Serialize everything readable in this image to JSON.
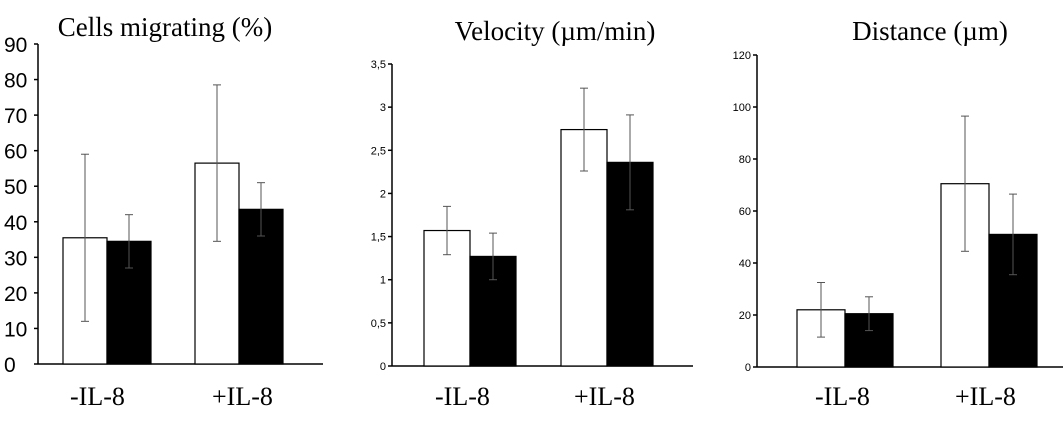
{
  "chart_data": [
    {
      "type": "bar",
      "title": "Cells migrating (%)",
      "categories": [
        "-IL-8",
        "+IL-8"
      ],
      "series": [
        {
          "color": "#ffffff",
          "values": [
            35.5,
            56.5
          ],
          "errors": [
            23.5,
            22
          ]
        },
        {
          "color": "#000000",
          "values": [
            34.5,
            43.5
          ],
          "errors": [
            7.5,
            7.5
          ]
        }
      ],
      "ylim": [
        0,
        90
      ],
      "yticks": [
        "0",
        "10",
        "20",
        "30",
        "40",
        "50",
        "60",
        "70",
        "80",
        "90"
      ],
      "xlabel": "",
      "ylabel": ""
    },
    {
      "type": "bar",
      "title": "Velocity (µm/min)",
      "categories": [
        "-IL-8",
        "+IL-8"
      ],
      "series": [
        {
          "color": "#ffffff",
          "values": [
            1.57,
            2.74
          ],
          "errors": [
            0.28,
            0.48
          ]
        },
        {
          "color": "#000000",
          "values": [
            1.27,
            2.36
          ],
          "errors": [
            0.27,
            0.55
          ]
        }
      ],
      "ylim": [
        0,
        3.5
      ],
      "yticks": [
        "0",
        "0,5",
        "1",
        "1,5",
        "2",
        "2,5",
        "3",
        "3,5"
      ],
      "xlabel": "",
      "ylabel": ""
    },
    {
      "type": "bar",
      "title": "Distance (µm)",
      "categories": [
        "-IL-8",
        "+IL-8"
      ],
      "series": [
        {
          "color": "#ffffff",
          "values": [
            22,
            70.5
          ],
          "errors": [
            10.5,
            26
          ]
        },
        {
          "color": "#000000",
          "values": [
            20.5,
            51
          ],
          "errors": [
            6.5,
            15.5
          ]
        }
      ],
      "ylim": [
        0,
        120
      ],
      "yticks": [
        "0",
        "20",
        "40",
        "60",
        "80",
        "100",
        "120"
      ],
      "xlabel": "",
      "ylabel": ""
    }
  ]
}
